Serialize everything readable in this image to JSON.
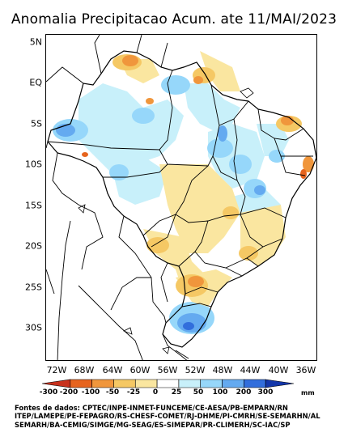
{
  "title": "Anomalia Precipitacao Acum. ate 11/MAI/2023",
  "map": {
    "lat_labels": [
      "5N",
      "EQ",
      "5S",
      "10S",
      "15S",
      "20S",
      "25S",
      "30S"
    ],
    "lon_labels": [
      "72W",
      "68W",
      "64W",
      "60W",
      "56W",
      "52W",
      "48W",
      "44W",
      "40W",
      "36W"
    ]
  },
  "legend": {
    "ticks": [
      "-300",
      "-200",
      "-100",
      "-50",
      "-25",
      "0",
      "25",
      "50",
      "100",
      "200",
      "300"
    ],
    "unit": "mm",
    "colors": [
      "#c8321e",
      "#e6641e",
      "#f0963c",
      "#f5c864",
      "#fae6a0",
      "#ffffff",
      "#c8f0fa",
      "#96d7fa",
      "#64aaf0",
      "#326edc",
      "#1437aa"
    ]
  },
  "credits": {
    "line1": "Fontes de dados: CPTEC/INPE-INMET-FUNCEME/CE-AESA/PB-EMPARN/RN",
    "line2": "ITEP/LAMEPE/PE-FEPAGRO/RS-CHESF-COMET/RJ-DHME/PI-CMRH/SE-SEMARHN/AL",
    "line3": "SEMARH/BA-CEMIG/SIMGE/MG-SEAG/ES-SIMEPAR/PR-CLIMERH/SC-IAC/SP"
  }
}
